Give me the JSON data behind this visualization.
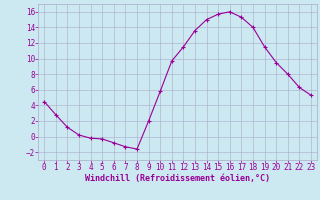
{
  "x": [
    0,
    1,
    2,
    3,
    4,
    5,
    6,
    7,
    8,
    9,
    10,
    11,
    12,
    13,
    14,
    15,
    16,
    17,
    18,
    19,
    20,
    21,
    22,
    23
  ],
  "y": [
    4.5,
    2.8,
    1.2,
    0.2,
    -0.2,
    -0.3,
    -0.8,
    -1.3,
    -1.6,
    2.0,
    5.8,
    9.7,
    11.5,
    13.6,
    15.0,
    15.7,
    16.0,
    15.3,
    14.0,
    11.5,
    9.5,
    8.0,
    6.3,
    5.3
  ],
  "line_color": "#990099",
  "marker": "+",
  "marker_size": 3,
  "background_color": "#cce8f0",
  "grid_color": "#aaaacc",
  "xlabel": "Windchill (Refroidissement éolien,°C)",
  "xlabel_color": "#990099",
  "tick_color": "#990099",
  "xlim": [
    -0.5,
    23.5
  ],
  "ylim": [
    -3,
    17
  ],
  "yticks": [
    -2,
    0,
    2,
    4,
    6,
    8,
    10,
    12,
    14,
    16
  ],
  "xticks": [
    0,
    1,
    2,
    3,
    4,
    5,
    6,
    7,
    8,
    9,
    10,
    11,
    12,
    13,
    14,
    15,
    16,
    17,
    18,
    19,
    20,
    21,
    22,
    23
  ],
  "tick_fontsize": 5.5,
  "xlabel_fontsize": 6.0
}
